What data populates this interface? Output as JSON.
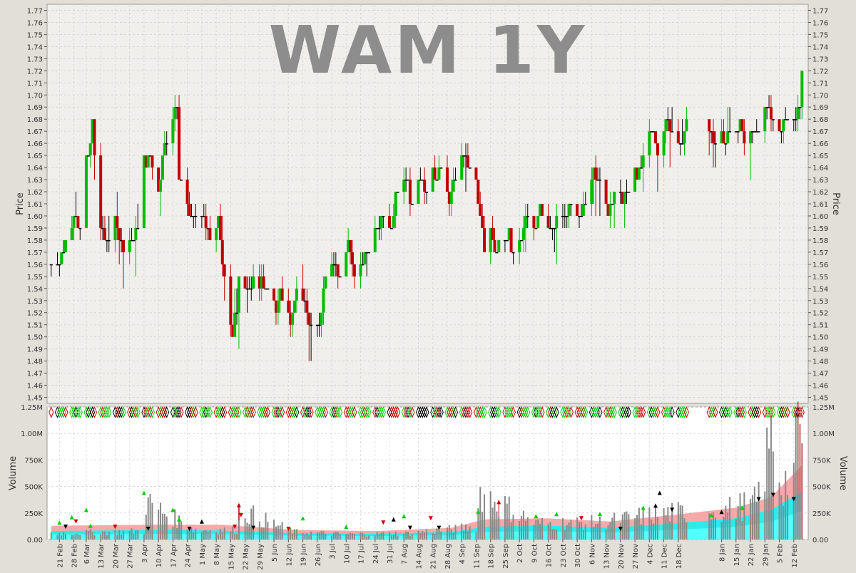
{
  "chart_data": [
    {
      "type": "ohlc",
      "title": "WAM 1Y",
      "ylabel": "Price",
      "ylim": [
        1.445,
        1.775
      ],
      "yticks": [
        1.45,
        1.46,
        1.47,
        1.48,
        1.49,
        1.5,
        1.51,
        1.52,
        1.53,
        1.54,
        1.55,
        1.56,
        1.57,
        1.58,
        1.59,
        1.6,
        1.61,
        1.62,
        1.63,
        1.64,
        1.65,
        1.66,
        1.67,
        1.68,
        1.69,
        1.7,
        1.71,
        1.72,
        1.73,
        1.74,
        1.75,
        1.76,
        1.77
      ],
      "grid": true,
      "colors": {
        "up": "#00bb00",
        "down": "#c00000",
        "flat": "#000000"
      },
      "anchors": [
        [
          "2023-02-17",
          1.56
        ],
        [
          "2023-02-21",
          1.56
        ],
        [
          "2023-02-24",
          1.575
        ],
        [
          "2023-02-28",
          1.6
        ],
        [
          "2023-03-03",
          1.59
        ],
        [
          "2023-03-06",
          1.64
        ],
        [
          "2023-03-09",
          1.665
        ],
        [
          "2023-03-13",
          1.59
        ],
        [
          "2023-03-16",
          1.58
        ],
        [
          "2023-03-20",
          1.595
        ],
        [
          "2023-03-24",
          1.57
        ],
        [
          "2023-03-28",
          1.58
        ],
        [
          "2023-03-31",
          1.59
        ],
        [
          "2023-04-03",
          1.65
        ],
        [
          "2023-04-06",
          1.65
        ],
        [
          "2023-04-10",
          1.62
        ],
        [
          "2023-04-14",
          1.67
        ],
        [
          "2023-04-19",
          1.69
        ],
        [
          "2023-04-20",
          1.63
        ],
        [
          "2023-04-24",
          1.6
        ],
        [
          "2023-04-28",
          1.6
        ],
        [
          "2023-05-02",
          1.595
        ],
        [
          "2023-05-05",
          1.58
        ],
        [
          "2023-05-09",
          1.59
        ],
        [
          "2023-05-12",
          1.55
        ],
        [
          "2023-05-16",
          1.5
        ],
        [
          "2023-05-19",
          1.545
        ],
        [
          "2023-05-23",
          1.54
        ],
        [
          "2023-05-26",
          1.55
        ],
        [
          "2023-05-30",
          1.54
        ],
        [
          "2023-06-02",
          1.54
        ],
        [
          "2023-06-06",
          1.52
        ],
        [
          "2023-06-09",
          1.53
        ],
        [
          "2023-06-13",
          1.51
        ],
        [
          "2023-06-16",
          1.54
        ],
        [
          "2023-06-20",
          1.53
        ],
        [
          "2023-06-23",
          1.51
        ],
        [
          "2023-06-27",
          1.51
        ],
        [
          "2023-06-30",
          1.55
        ],
        [
          "2023-07-04",
          1.56
        ],
        [
          "2023-07-07",
          1.55
        ],
        [
          "2023-07-11",
          1.58
        ],
        [
          "2023-07-14",
          1.55
        ],
        [
          "2023-07-18",
          1.56
        ],
        [
          "2023-07-21",
          1.58
        ],
        [
          "2023-07-25",
          1.59
        ],
        [
          "2023-07-28",
          1.6
        ],
        [
          "2023-08-01",
          1.59
        ],
        [
          "2023-08-04",
          1.62
        ],
        [
          "2023-08-08",
          1.63
        ],
        [
          "2023-08-11",
          1.62
        ],
        [
          "2023-08-15",
          1.63
        ],
        [
          "2023-08-18",
          1.62
        ],
        [
          "2023-08-22",
          1.63
        ],
        [
          "2023-08-25",
          1.64
        ],
        [
          "2023-08-29",
          1.61
        ],
        [
          "2023-09-01",
          1.63
        ],
        [
          "2023-09-05",
          1.65
        ],
        [
          "2023-09-08",
          1.64
        ],
        [
          "2023-09-12",
          1.62
        ],
        [
          "2023-09-15",
          1.57
        ],
        [
          "2023-09-19",
          1.58
        ],
        [
          "2023-09-22",
          1.57
        ],
        [
          "2023-09-26",
          1.58
        ],
        [
          "2023-09-29",
          1.57
        ],
        [
          "2023-10-03",
          1.58
        ],
        [
          "2023-10-06",
          1.6
        ],
        [
          "2023-10-10",
          1.59
        ],
        [
          "2023-10-13",
          1.6
        ],
        [
          "2023-10-17",
          1.59
        ],
        [
          "2023-10-20",
          1.6
        ],
        [
          "2023-10-24",
          1.6
        ],
        [
          "2023-10-27",
          1.61
        ],
        [
          "2023-10-31",
          1.6
        ],
        [
          "2023-11-03",
          1.61
        ],
        [
          "2023-11-07",
          1.64
        ],
        [
          "2023-11-10",
          1.62
        ],
        [
          "2023-11-14",
          1.6
        ],
        [
          "2023-11-17",
          1.62
        ],
        [
          "2023-11-21",
          1.61
        ],
        [
          "2023-11-24",
          1.62
        ],
        [
          "2023-11-28",
          1.64
        ],
        [
          "2023-12-01",
          1.65
        ],
        [
          "2023-12-05",
          1.67
        ],
        [
          "2023-12-08",
          1.66
        ],
        [
          "2023-12-12",
          1.68
        ],
        [
          "2023-12-15",
          1.67
        ],
        [
          "2023-12-19",
          1.66
        ],
        [
          "2023-12-22",
          1.67
        ],
        [
          "2024-01-02",
          1.67
        ],
        [
          "2024-01-05",
          1.66
        ],
        [
          "2024-01-09",
          1.66
        ],
        [
          "2024-01-12",
          1.67
        ],
        [
          "2024-01-16",
          1.67
        ],
        [
          "2024-01-19",
          1.66
        ],
        [
          "2024-01-23",
          1.67
        ],
        [
          "2024-01-26",
          1.67
        ],
        [
          "2024-01-30",
          1.69
        ],
        [
          "2024-02-02",
          1.68
        ],
        [
          "2024-02-06",
          1.67
        ],
        [
          "2024-02-09",
          1.68
        ],
        [
          "2024-02-13",
          1.68
        ],
        [
          "2024-02-15",
          1.69
        ],
        [
          "2024-02-16",
          1.72
        ]
      ]
    },
    {
      "type": "bar",
      "ylabel": "Volume",
      "ylim": [
        0,
        1250000
      ],
      "yticks": [
        [
          0,
          "0.00"
        ],
        [
          250000,
          "250K"
        ],
        [
          500000,
          "500K"
        ],
        [
          750000,
          "750K"
        ],
        [
          1000000,
          "1.00M"
        ],
        [
          1250000,
          "1.25M"
        ]
      ],
      "grid": true,
      "colors": {
        "bar": "#888888",
        "bar_last": "#c06060",
        "band_outer": "#f6a0a0",
        "band_mid": "#22eeee",
        "band_inner": "#55ffff",
        "signal_up": "#00cc00",
        "signal_down": "#cc0000",
        "signal_flat": "#000000"
      },
      "volume_anchors": [
        [
          "2023-02-17",
          60000
        ],
        [
          "2023-03-15",
          70000
        ],
        [
          "2023-04-03",
          80000
        ],
        [
          "2023-04-04",
          350000
        ],
        [
          "2023-04-28",
          90000
        ],
        [
          "2023-05-18",
          90000
        ],
        [
          "2023-05-19",
          280000
        ],
        [
          "2023-06-15",
          70000
        ],
        [
          "2023-07-10",
          50000
        ],
        [
          "2023-08-10",
          60000
        ],
        [
          "2023-09-11",
          120000
        ],
        [
          "2023-09-13",
          450000
        ],
        [
          "2023-10-10",
          150000
        ],
        [
          "2023-11-10",
          160000
        ],
        [
          "2023-12-08",
          240000
        ],
        [
          "2024-01-10",
          280000
        ],
        [
          "2024-01-25",
          350000
        ],
        [
          "2024-02-02",
          1020000
        ],
        [
          "2024-02-06",
          500000
        ],
        [
          "2024-02-12",
          650000
        ],
        [
          "2024-02-15",
          1180000
        ],
        [
          "2024-02-16",
          800000
        ]
      ],
      "band_anchors": [
        [
          "2023-02-17",
          130000,
          80000
        ],
        [
          "2023-04-10",
          140000,
          90000
        ],
        [
          "2023-05-10",
          140000,
          85000
        ],
        [
          "2023-06-15",
          90000,
          60000
        ],
        [
          "2023-07-25",
          80000,
          55000
        ],
        [
          "2023-08-30",
          110000,
          70000
        ],
        [
          "2023-09-15",
          190000,
          120000
        ],
        [
          "2023-10-15",
          200000,
          130000
        ],
        [
          "2023-11-15",
          170000,
          110000
        ],
        [
          "2023-12-15",
          230000,
          150000
        ],
        [
          "2024-01-15",
          300000,
          200000
        ],
        [
          "2024-02-01",
          400000,
          280000
        ],
        [
          "2024-02-16",
          700000,
          450000
        ]
      ],
      "signals": [
        [
          "2023-02-21",
          160000,
          "up"
        ],
        [
          "2023-02-24",
          120000,
          "flat-down"
        ],
        [
          "2023-02-27",
          210000,
          "up"
        ],
        [
          "2023-03-01",
          170000,
          "down"
        ],
        [
          "2023-03-06",
          280000,
          "up"
        ],
        [
          "2023-03-08",
          130000,
          "up"
        ],
        [
          "2023-03-20",
          120000,
          "down"
        ],
        [
          "2023-04-03",
          440000,
          "up"
        ],
        [
          "2023-04-05",
          100000,
          "flat-down"
        ],
        [
          "2023-04-17",
          280000,
          "up"
        ],
        [
          "2023-04-20",
          190000,
          "up"
        ],
        [
          "2023-04-25",
          100000,
          "flat-down"
        ],
        [
          "2023-05-01",
          170000,
          "flat-up"
        ],
        [
          "2023-05-17",
          120000,
          "down"
        ],
        [
          "2023-05-19",
          330000,
          "down-up"
        ],
        [
          "2023-05-20",
          230000,
          "down"
        ],
        [
          "2023-05-26",
          110000,
          "flat-down"
        ],
        [
          "2023-06-12",
          100000,
          "down"
        ],
        [
          "2023-06-19",
          200000,
          "up"
        ],
        [
          "2023-07-10",
          120000,
          "up"
        ],
        [
          "2023-07-28",
          160000,
          "down"
        ],
        [
          "2023-08-02",
          190000,
          "flat-up"
        ],
        [
          "2023-08-07",
          220000,
          "up"
        ],
        [
          "2023-08-10",
          110000,
          "flat-down"
        ],
        [
          "2023-08-20",
          200000,
          "down"
        ],
        [
          "2023-08-24",
          110000,
          "flat-down"
        ],
        [
          "2023-09-12",
          260000,
          "up"
        ],
        [
          "2023-09-22",
          360000,
          "down-up"
        ],
        [
          "2023-10-10",
          220000,
          "up"
        ],
        [
          "2023-10-20",
          240000,
          "up"
        ],
        [
          "2023-11-01",
          200000,
          "down"
        ],
        [
          "2023-11-10",
          240000,
          "up"
        ],
        [
          "2023-11-20",
          100000,
          "flat-down"
        ],
        [
          "2023-12-01",
          300000,
          "up"
        ],
        [
          "2023-12-07",
          320000,
          "flat-up"
        ],
        [
          "2023-12-09",
          440000,
          "flat-up"
        ],
        [
          "2023-12-15",
          280000,
          "flat-down"
        ],
        [
          "2024-01-03",
          230000,
          "up"
        ],
        [
          "2024-01-08",
          260000,
          "flat-up"
        ],
        [
          "2024-01-18",
          300000,
          "up"
        ],
        [
          "2024-01-26",
          380000,
          "flat-down"
        ],
        [
          "2024-02-02",
          420000,
          "flat-down"
        ],
        [
          "2024-02-12",
          380000,
          "flat-down"
        ]
      ],
      "xtick_labels": [
        "21 Feb",
        "28 Feb",
        "6 Mar",
        "13 Mar",
        "20 Mar",
        "27 Mar",
        "3 Apr",
        "10 Apr",
        "17 Apr",
        "24 Apr",
        "1 May",
        "8 May",
        "15 May",
        "22 May",
        "29 May",
        "5 Jun",
        "12 Jun",
        "19 Jun",
        "26 Jun",
        "3 Jul",
        "10 Jul",
        "17 Jul",
        "24 Jul",
        "31 Jul",
        "7 Aug",
        "14 Aug",
        "21 Aug",
        "28 Aug",
        "4 Sep",
        "11 Sep",
        "18 Sep",
        "25 Sep",
        "2 Oct",
        "9 Oct",
        "16 Oct",
        "23 Oct",
        "30 Oct",
        "6 Nov",
        "13 Nov",
        "20 Nov",
        "27 Nov",
        "4 Dec",
        "11 Dec",
        "18 Dec",
        "8 Jan",
        "15 Jan",
        "22 Jan",
        "29 Jan",
        "5 Feb",
        "12 Feb"
      ],
      "xtick_dates": [
        "2023-02-21",
        "2023-02-28",
        "2023-03-06",
        "2023-03-13",
        "2023-03-20",
        "2023-03-27",
        "2023-04-03",
        "2023-04-10",
        "2023-04-17",
        "2023-04-24",
        "2023-05-01",
        "2023-05-08",
        "2023-05-15",
        "2023-05-22",
        "2023-05-29",
        "2023-06-05",
        "2023-06-12",
        "2023-06-19",
        "2023-06-26",
        "2023-07-03",
        "2023-07-10",
        "2023-07-17",
        "2023-07-24",
        "2023-07-31",
        "2023-08-07",
        "2023-08-14",
        "2023-08-21",
        "2023-08-28",
        "2023-09-04",
        "2023-09-11",
        "2023-09-18",
        "2023-09-25",
        "2023-10-02",
        "2023-10-09",
        "2023-10-16",
        "2023-10-23",
        "2023-10-30",
        "2023-11-06",
        "2023-11-13",
        "2023-11-20",
        "2023-11-27",
        "2023-12-04",
        "2023-12-11",
        "2023-12-18",
        "2024-01-08",
        "2024-01-15",
        "2024-01-22",
        "2024-01-29",
        "2024-02-05",
        "2024-02-12"
      ],
      "xlim": [
        "2023-02-15",
        "2024-02-19"
      ]
    }
  ]
}
